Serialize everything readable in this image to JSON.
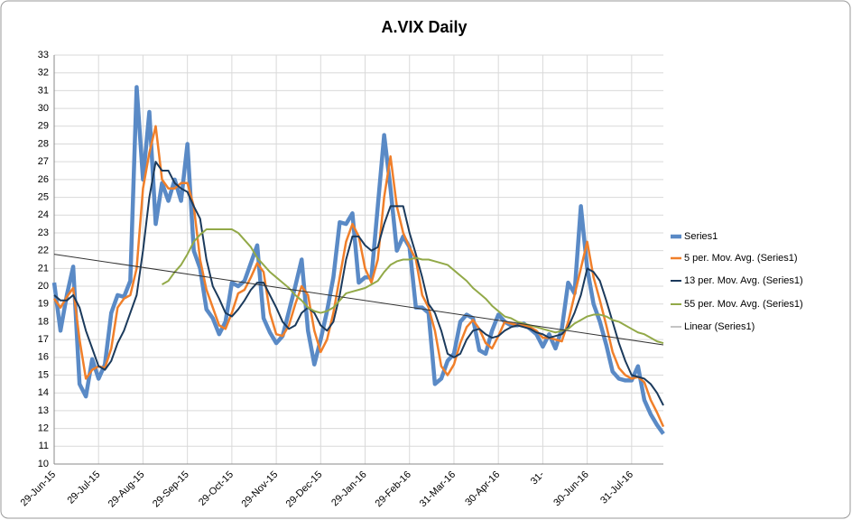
{
  "chart_data": {
    "type": "line",
    "title": "A.VIX Daily",
    "categories": [
      "29-Jun-15",
      null,
      null,
      null,
      null,
      null,
      null,
      "29-Jul-15",
      null,
      null,
      null,
      null,
      null,
      null,
      "29-Aug-15",
      null,
      null,
      null,
      null,
      null,
      null,
      "29-Sep-15",
      null,
      null,
      null,
      null,
      null,
      null,
      "29-Oct-15",
      null,
      null,
      null,
      null,
      null,
      null,
      "29-Nov-15",
      null,
      null,
      null,
      null,
      null,
      null,
      "29-Dec-15",
      null,
      null,
      null,
      null,
      null,
      null,
      "29-Jan-16",
      null,
      null,
      null,
      null,
      null,
      null,
      "29-Feb-16",
      null,
      null,
      null,
      null,
      null,
      null,
      "31-Mar-16",
      null,
      null,
      null,
      null,
      null,
      null,
      "30-Apr-16",
      null,
      null,
      null,
      null,
      null,
      null,
      "31-",
      null,
      null,
      null,
      null,
      null,
      null,
      "30-Jun-16",
      null,
      null,
      null,
      null,
      null,
      null,
      "31-Jul-16",
      null,
      null,
      null,
      null,
      null
    ],
    "series": [
      {
        "name": "Series1",
        "color": "#5a8ac6",
        "width": 4.5,
        "values": [
          20.2,
          17.5,
          19.5,
          21.1,
          14.5,
          13.8,
          15.9,
          14.8,
          15.6,
          18.5,
          19.5,
          19.4,
          20.3,
          31.2,
          26,
          29.8,
          23.5,
          25.8,
          24.8,
          26,
          24.8,
          28,
          22,
          21,
          18.7,
          18.2,
          17.3,
          18,
          20.2,
          20,
          20.3,
          21.3,
          22.3,
          18.2,
          17.4,
          16.8,
          17.2,
          18.6,
          20,
          21.5,
          17.5,
          15.6,
          17,
          18.6,
          20.5,
          23.6,
          23.5,
          24.1,
          20.2,
          20.5,
          20.5,
          24.5,
          28.5,
          25.5,
          22,
          22.8,
          22.2,
          18.8,
          18.8,
          18.5,
          14.5,
          14.8,
          15.8,
          16.2,
          18,
          18.4,
          18.2,
          16.4,
          16.2,
          17.5,
          18.4,
          18,
          17.8,
          17.8,
          17.9,
          17.6,
          17.3,
          16.6,
          17.3,
          16.5,
          17.6,
          20.2,
          19.6,
          24.5,
          21,
          19,
          18,
          16.7,
          15.2,
          14.8,
          14.7,
          14.7,
          15.5,
          13.6,
          12.8,
          12.2,
          11.7
        ]
      },
      {
        "name": "5 per. Mov. Avg. (Series1)",
        "color": "#f07f2a",
        "width": 2.5,
        "values": [
          19.3,
          18.8,
          19.4,
          19.9,
          17,
          14.8,
          15.3,
          15.5,
          15.4,
          16.5,
          18.8,
          19.3,
          19.5,
          21,
          25.5,
          27.5,
          29,
          26,
          25.5,
          25.5,
          25.8,
          25.8,
          24.5,
          21.5,
          19.8,
          18.8,
          17.8,
          17.6,
          18.5,
          19.6,
          19.8,
          20.5,
          21.3,
          20.8,
          18.5,
          17.3,
          17.2,
          17.8,
          19,
          20,
          19.5,
          17.5,
          16.3,
          17,
          18.5,
          20.5,
          22.5,
          23.5,
          22.8,
          21,
          20.2,
          21.5,
          25,
          27.3,
          24.5,
          23,
          22.2,
          21.5,
          19.5,
          18.8,
          17.5,
          15.5,
          15,
          15.6,
          16.8,
          17.7,
          18.1,
          17.6,
          16.8,
          16.5,
          17.2,
          18,
          17.9,
          17.8,
          17.8,
          17.7,
          17.5,
          17.1,
          17.1,
          17,
          16.9,
          18,
          19.5,
          21,
          22.5,
          20.5,
          19.2,
          17.8,
          16.3,
          15.4,
          15,
          14.8,
          14.9,
          14.6,
          13.6,
          12.9,
          12.1
        ]
      },
      {
        "name": "13 per. Mov. Avg. (Series1)",
        "color": "#1b3a5c",
        "width": 2,
        "values": [
          19.5,
          19.2,
          19.2,
          19.5,
          18.8,
          17.5,
          16.5,
          15.5,
          15.3,
          15.8,
          16.8,
          17.5,
          18.5,
          19.5,
          22,
          25,
          27,
          26.5,
          26.5,
          25.8,
          25.5,
          25.3,
          24.5,
          23.8,
          21.5,
          20,
          19.3,
          18.5,
          18.3,
          18.7,
          19.2,
          19.8,
          20.2,
          20.2,
          19.5,
          18.8,
          18,
          17.6,
          17.8,
          18.5,
          18.8,
          18.5,
          17.8,
          17.5,
          18,
          19.5,
          21.5,
          22.8,
          22.8,
          22.3,
          22,
          22.2,
          23.5,
          24.5,
          24.5,
          24.5,
          23,
          21.8,
          20.5,
          19,
          18.5,
          17.5,
          16.2,
          16,
          16.2,
          17,
          17.5,
          17.6,
          17.3,
          17.1,
          17.2,
          17.5,
          17.7,
          17.8,
          17.7,
          17.6,
          17.4,
          17.3,
          17.1,
          17.2,
          17.3,
          17.7,
          18.5,
          19.5,
          21,
          20.8,
          20.3,
          19.2,
          18,
          16.8,
          15.8,
          15,
          14.9,
          14.8,
          14.5,
          14,
          13.3
        ]
      },
      {
        "name": "55 per. Mov. Avg. (Series1)",
        "color": "#92a948",
        "width": 2,
        "values": [
          null,
          null,
          null,
          null,
          null,
          null,
          null,
          null,
          null,
          null,
          null,
          null,
          null,
          null,
          null,
          null,
          null,
          20.1,
          20.3,
          20.8,
          21.2,
          21.8,
          22.5,
          22.9,
          23.2,
          23.2,
          23.2,
          23.2,
          23.2,
          23,
          22.6,
          22.2,
          21.6,
          21.2,
          20.8,
          20.5,
          20.2,
          19.9,
          19.5,
          19.2,
          18.8,
          18.6,
          18.5,
          18.6,
          18.8,
          19.2,
          19.6,
          19.7,
          19.8,
          19.9,
          20.1,
          20.3,
          20.8,
          21.2,
          21.4,
          21.5,
          21.5,
          21.6,
          21.5,
          21.5,
          21.4,
          21.3,
          21.2,
          20.9,
          20.6,
          20.3,
          19.9,
          19.6,
          19.3,
          18.9,
          18.6,
          18.3,
          18.2,
          18,
          17.9,
          17.8,
          17.7,
          17.6,
          17.5,
          17.4,
          17.5,
          17.6,
          17.9,
          18.1,
          18.3,
          18.4,
          18.4,
          18.3,
          18.1,
          18,
          17.8,
          17.6,
          17.4,
          17.3,
          17.1,
          16.9,
          16.8
        ]
      },
      {
        "name": "Linear (Series1)",
        "color": "#333333",
        "width": 1,
        "trend_start": 21.8,
        "trend_end": 16.7
      }
    ],
    "ylim": [
      10,
      33
    ],
    "yticks": [
      10,
      11,
      12,
      13,
      14,
      15,
      16,
      17,
      18,
      19,
      20,
      21,
      22,
      23,
      24,
      25,
      26,
      27,
      28,
      29,
      30,
      31,
      32,
      33
    ],
    "grid": true,
    "legend": "right"
  }
}
